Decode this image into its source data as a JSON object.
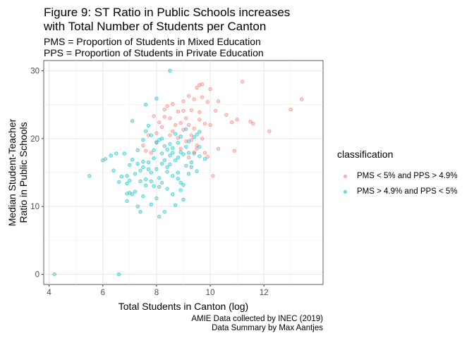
{
  "chart_data": {
    "type": "scatter",
    "title_line1": "Figure 9: ST Ratio in Public Schools increases",
    "title_line2": "with Total Number of Students per Canton",
    "subtitle_line1": "PMS = Proportion of Students in Mixed Education",
    "subtitle_line2": "PPS = Proportion of Students in Private Education",
    "xlabel": "Total Students in Canton (log)",
    "ylabel_line1": "Median Student-Teacher",
    "ylabel_line2": "Ratio in Public Schools",
    "xlim": [
      3.8,
      14.2
    ],
    "ylim": [
      -1.5,
      31.5
    ],
    "xticks": [
      4,
      6,
      8,
      10,
      12
    ],
    "yticks": [
      0,
      10,
      20,
      30
    ],
    "grid": true,
    "legend_title": "classification",
    "legend_position": "right",
    "caption_line1": "AMIE Data collected by INEC (2019)",
    "caption_line2": "Data Summary by Max Aantjes",
    "series": [
      {
        "name": "PMS < 5% and PPS > 4.9%",
        "color": "#F8766D",
        "points": [
          [
            8.3,
            24.3
          ],
          [
            8.6,
            25.1
          ],
          [
            8.8,
            24.0
          ],
          [
            9.0,
            25.5
          ],
          [
            9.2,
            26.3
          ],
          [
            9.4,
            25.8
          ],
          [
            9.5,
            27.5
          ],
          [
            9.6,
            27.9
          ],
          [
            9.7,
            28.0
          ],
          [
            10.0,
            27.3
          ],
          [
            10.3,
            25.5
          ],
          [
            10.6,
            23.5
          ],
          [
            10.8,
            22.4
          ],
          [
            11.0,
            22.8
          ],
          [
            11.2,
            28.4
          ],
          [
            11.5,
            22.5
          ],
          [
            11.6,
            22.2
          ],
          [
            12.2,
            21.1
          ],
          [
            13.0,
            24.3
          ],
          [
            13.4,
            25.8
          ],
          [
            10.9,
            18.2
          ],
          [
            10.3,
            18.5
          ],
          [
            10.0,
            22.0
          ],
          [
            9.8,
            22.2
          ],
          [
            9.6,
            22.8
          ],
          [
            9.4,
            21.5
          ],
          [
            9.2,
            22.0
          ],
          [
            9.0,
            21.3
          ],
          [
            8.8,
            20.1
          ],
          [
            8.7,
            22.0
          ],
          [
            8.5,
            23.0
          ],
          [
            8.3,
            23.2
          ],
          [
            8.2,
            21.7
          ],
          [
            8.0,
            20.8
          ],
          [
            7.9,
            23.3
          ],
          [
            7.7,
            20.5
          ],
          [
            7.5,
            19.0
          ],
          [
            9.1,
            19.6
          ],
          [
            9.3,
            19.8
          ],
          [
            9.5,
            18.5
          ],
          [
            9.8,
            17.9
          ],
          [
            10.1,
            14.5
          ],
          [
            9.9,
            17.3
          ],
          [
            8.4,
            24.8
          ],
          [
            8.9,
            22.3
          ],
          [
            9.1,
            23.0
          ],
          [
            9.3,
            24.2
          ],
          [
            9.6,
            23.9
          ],
          [
            9.7,
            26.1
          ],
          [
            9.9,
            25.4
          ],
          [
            10.2,
            24.1
          ],
          [
            8.1,
            22.4
          ],
          [
            8.6,
            21.1
          ],
          [
            8.9,
            18.5
          ],
          [
            9.2,
            17.2
          ],
          [
            9.5,
            19.0
          ],
          [
            9.4,
            18.0
          ],
          [
            7.6,
            18.2
          ],
          [
            7.8,
            17.9
          ],
          [
            8.0,
            19.5
          ],
          [
            8.5,
            20.5
          ],
          [
            9.0,
            24.1
          ],
          [
            9.7,
            20.0
          ],
          [
            9.3,
            20.5
          ]
        ]
      },
      {
        "name": "PMS > 4.9% and PPS < 5%",
        "color": "#00BFC4",
        "points": [
          [
            4.2,
            0.0
          ],
          [
            6.6,
            0.0
          ],
          [
            5.5,
            14.5
          ],
          [
            6.0,
            16.8
          ],
          [
            6.1,
            17.0
          ],
          [
            6.3,
            17.5
          ],
          [
            6.5,
            17.8
          ],
          [
            6.4,
            15.3
          ],
          [
            6.6,
            13.6
          ],
          [
            6.7,
            14.4
          ],
          [
            6.8,
            17.8
          ],
          [
            6.9,
            14.5
          ],
          [
            6.9,
            13.4
          ],
          [
            7.0,
            12.0
          ],
          [
            7.0,
            13.8
          ],
          [
            7.1,
            11.8
          ],
          [
            7.2,
            12.2
          ],
          [
            7.3,
            10.0
          ],
          [
            7.4,
            15.3
          ],
          [
            7.4,
            9.2
          ],
          [
            7.5,
            15.8
          ],
          [
            7.5,
            11.5
          ],
          [
            7.6,
            25.0
          ],
          [
            7.6,
            14.0
          ],
          [
            7.7,
            16.5
          ],
          [
            7.8,
            15.0
          ],
          [
            7.8,
            10.3
          ],
          [
            7.9,
            18.3
          ],
          [
            7.9,
            13.0
          ],
          [
            8.0,
            15.5
          ],
          [
            8.0,
            11.2
          ],
          [
            8.1,
            14.2
          ],
          [
            8.1,
            8.5
          ],
          [
            8.2,
            17.8
          ],
          [
            8.2,
            13.5
          ],
          [
            8.3,
            9.2
          ],
          [
            8.4,
            15.8
          ],
          [
            8.4,
            12.6
          ],
          [
            8.5,
            16.2
          ],
          [
            8.5,
            30.0
          ],
          [
            8.6,
            14.5
          ],
          [
            8.6,
            11.8
          ],
          [
            8.7,
            10.2
          ],
          [
            8.8,
            17.2
          ],
          [
            8.8,
            15.0
          ],
          [
            8.9,
            13.5
          ],
          [
            8.9,
            20.3
          ],
          [
            9.0,
            13.2
          ],
          [
            9.0,
            11.0
          ],
          [
            9.1,
            16.0
          ],
          [
            9.1,
            18.8
          ],
          [
            9.2,
            14.8
          ],
          [
            9.3,
            15.8
          ],
          [
            9.4,
            17.8
          ],
          [
            9.5,
            15.2
          ],
          [
            9.6,
            21.0
          ],
          [
            9.8,
            17.0
          ],
          [
            7.1,
            22.6
          ],
          [
            7.3,
            16.3
          ],
          [
            7.5,
            16.6
          ],
          [
            7.6,
            21.1
          ],
          [
            7.7,
            21.9
          ],
          [
            7.8,
            20.5
          ],
          [
            8.0,
            19.4
          ],
          [
            8.1,
            19.8
          ],
          [
            8.2,
            20.0
          ],
          [
            8.3,
            18.9
          ],
          [
            8.5,
            19.2
          ],
          [
            8.7,
            20.7
          ],
          [
            8.9,
            18.0
          ],
          [
            9.1,
            21.4
          ],
          [
            9.2,
            19.6
          ],
          [
            9.4,
            20.2
          ],
          [
            9.6,
            18.8
          ],
          [
            8.4,
            15.1
          ],
          [
            8.6,
            17.9
          ],
          [
            8.8,
            14.1
          ],
          [
            8.9,
            12.4
          ],
          [
            8.1,
            12.9
          ],
          [
            8.0,
            25.9
          ],
          [
            7.6,
            13.1
          ],
          [
            7.4,
            13.7
          ],
          [
            7.2,
            14.8
          ],
          [
            6.9,
            11.9
          ],
          [
            6.9,
            10.8
          ],
          [
            7.0,
            16.1
          ],
          [
            7.1,
            16.9
          ],
          [
            7.3,
            18.3
          ],
          [
            7.5,
            19.8
          ],
          [
            7.7,
            15.5
          ],
          [
            7.8,
            13.7
          ],
          [
            7.9,
            17.1
          ],
          [
            8.2,
            16.3
          ],
          [
            8.3,
            16.8
          ],
          [
            8.4,
            18.4
          ],
          [
            8.5,
            17.5
          ],
          [
            8.6,
            18.6
          ],
          [
            8.7,
            16.8
          ],
          [
            8.8,
            19.4
          ],
          [
            9.0,
            17.7
          ],
          [
            9.2,
            17.9
          ],
          [
            9.3,
            16.5
          ],
          [
            9.5,
            20.6
          ],
          [
            9.6,
            17.4
          ]
        ]
      }
    ]
  }
}
